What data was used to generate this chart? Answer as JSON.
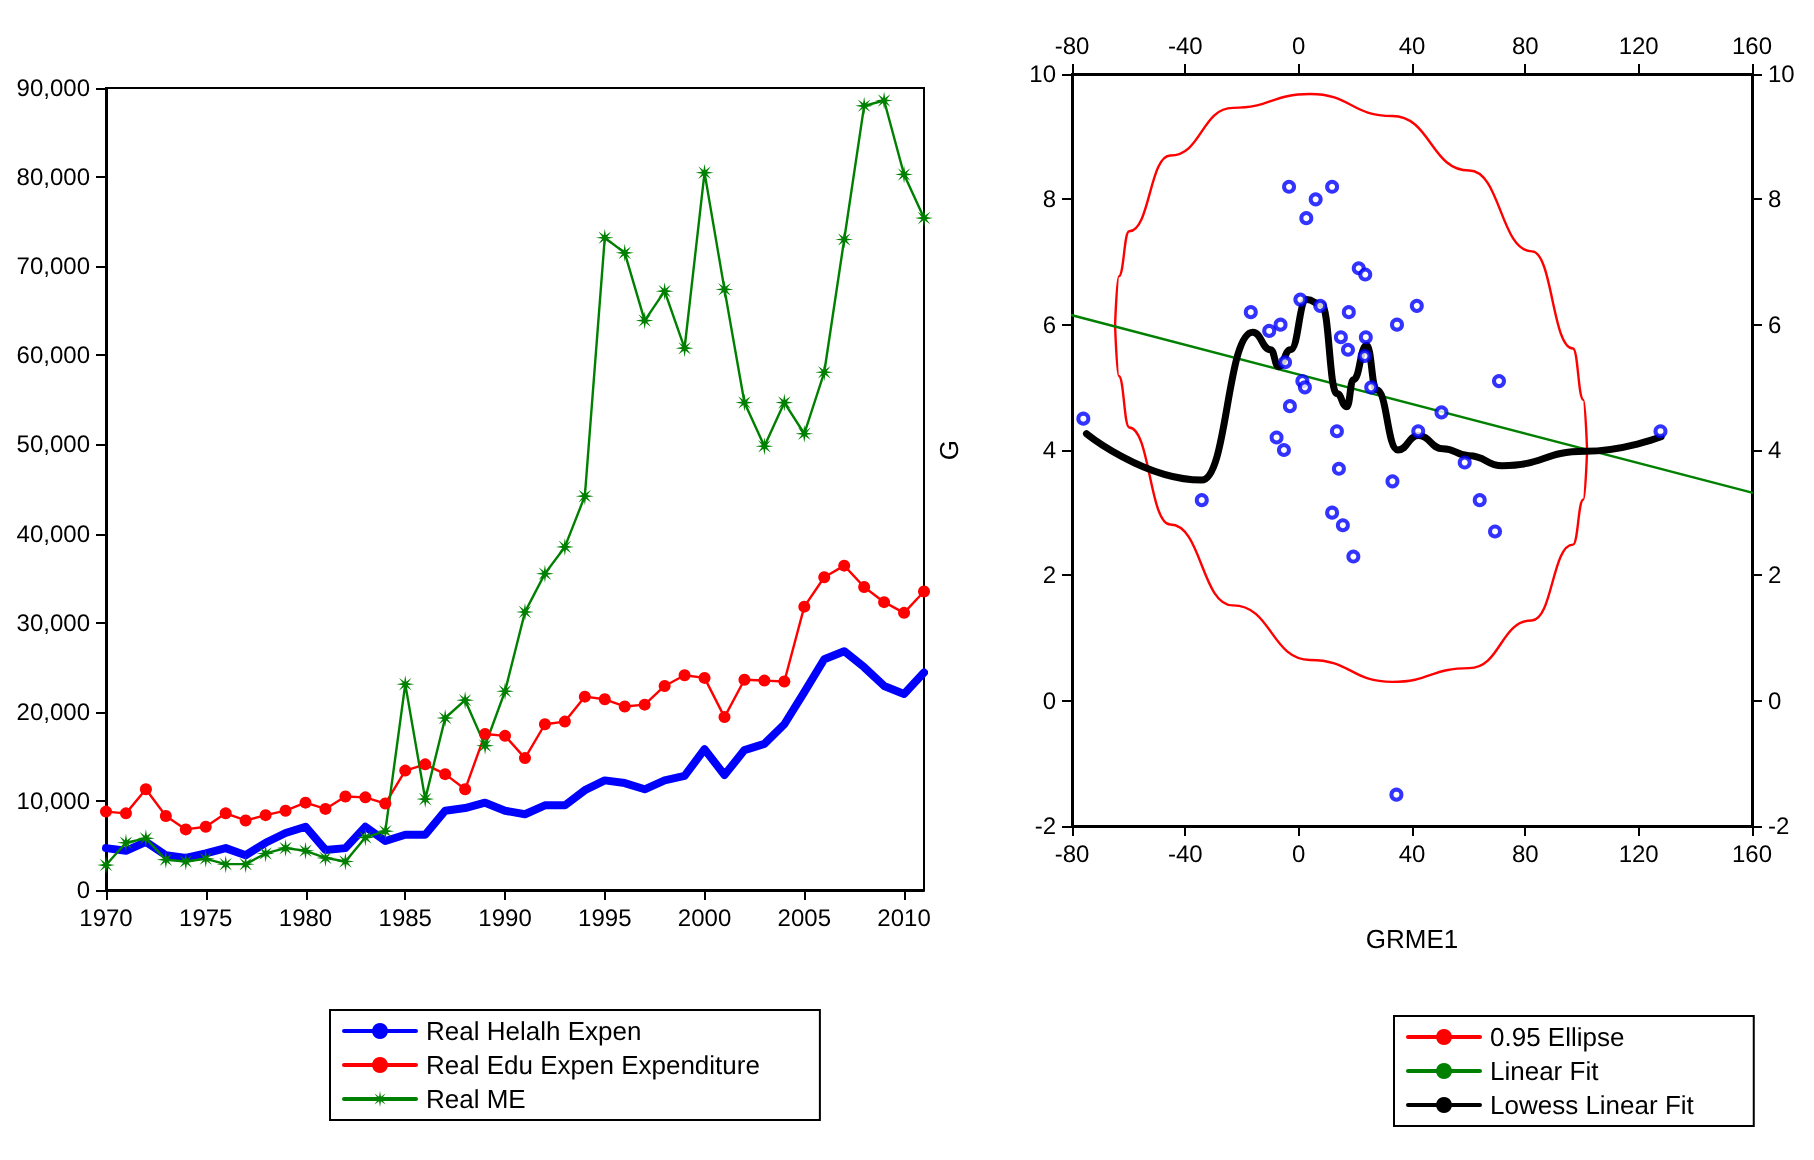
{
  "chart_data": [
    {
      "type": "line",
      "x": [
        1970,
        1971,
        1972,
        1973,
        1974,
        1975,
        1976,
        1977,
        1978,
        1979,
        1980,
        1981,
        1982,
        1983,
        1984,
        1985,
        1986,
        1987,
        1988,
        1989,
        1990,
        1991,
        1992,
        1993,
        1994,
        1995,
        1996,
        1997,
        1998,
        1999,
        2000,
        2001,
        2002,
        2003,
        2004,
        2005,
        2006,
        2007,
        2008,
        2009,
        2010,
        2011
      ],
      "xlim": [
        1970,
        2011
      ],
      "xticks": [
        1970,
        1975,
        1980,
        1985,
        1990,
        1995,
        2000,
        2005,
        2010
      ],
      "ylim": [
        0,
        90000
      ],
      "yticks": [
        0,
        {
          "value": 10000,
          "label": "10,000"
        },
        {
          "value": 20000,
          "label": "20,000"
        },
        {
          "value": 30000,
          "label": "30,000"
        },
        {
          "value": 40000,
          "label": "40,000"
        },
        {
          "value": 50000,
          "label": "50,000"
        },
        {
          "value": 60000,
          "label": "60,000"
        },
        {
          "value": 70000,
          "label": "70,000"
        },
        {
          "value": 80000,
          "label": "80,000"
        },
        {
          "value": 90000,
          "label": "90,000"
        }
      ],
      "grid": false,
      "legend": "bottom",
      "series": [
        {
          "name": "Real Helalh Expen",
          "color": "#0000ff",
          "marker": "none",
          "values": [
            4700,
            4400,
            5400,
            3900,
            3600,
            4100,
            4700,
            3900,
            5300,
            6400,
            7100,
            4500,
            4700,
            7100,
            5500,
            6200,
            6200,
            8900,
            9200,
            9800,
            8900,
            8500,
            9500,
            9500,
            11200,
            12300,
            12000,
            11300,
            12300,
            12800,
            15800,
            12900,
            15700,
            16400,
            18600,
            22200,
            25900,
            26800,
            25000,
            22900,
            22000,
            24400
          ]
        },
        {
          "name": "Real Edu Expen Expenditure",
          "color": "#ff0000",
          "marker": "circle",
          "values": [
            8800,
            8600,
            11300,
            8300,
            6800,
            7100,
            8600,
            7800,
            8400,
            8900,
            9800,
            9100,
            10500,
            10400,
            9700,
            13400,
            14100,
            13000,
            11300,
            17500,
            17300,
            14800,
            18600,
            18900,
            21700,
            21400,
            20600,
            20800,
            22900,
            24100,
            23800,
            19400,
            23600,
            23500,
            23400,
            31800,
            35100,
            36400,
            34000,
            32300,
            31100,
            33500
          ]
        },
        {
          "name": "Real ME",
          "color": "#008000",
          "marker": "star",
          "values": [
            2800,
            5300,
            5800,
            3400,
            3200,
            3500,
            2900,
            2900,
            4100,
            4700,
            4400,
            3600,
            3200,
            5900,
            6600,
            23100,
            10200,
            19300,
            21300,
            16200,
            22300,
            31200,
            35500,
            38500,
            44200,
            73200,
            71500,
            63900,
            67200,
            60800,
            80500,
            67400,
            54700,
            49800,
            54700,
            51200,
            58100,
            73000,
            88000,
            88600,
            80300,
            75400
          ]
        }
      ]
    },
    {
      "type": "scatter",
      "xlabel": "GRME1",
      "ylabel": "G",
      "xlim": [
        -80,
        160
      ],
      "xticks": [
        -80,
        -40,
        0,
        40,
        80,
        120,
        160
      ],
      "x2lim": [
        -80,
        160
      ],
      "x2ticks": [
        -80,
        -40,
        0,
        40,
        80,
        120,
        160
      ],
      "ylim": [
        -2,
        10
      ],
      "yticks": [
        -2,
        0,
        2,
        4,
        6,
        8,
        10
      ],
      "y2lim": [
        -2,
        10
      ],
      "y2ticks": [
        -2,
        0,
        2,
        4,
        6,
        8,
        10
      ],
      "grid": false,
      "legend": "bottom right",
      "series": [
        {
          "color": "#0000ff",
          "marker": "circle",
          "x": [
            -76.0,
            -34.2,
            -16.9,
            -10.4,
            -6.4,
            -4.8,
            -3.4,
            -3.1,
            -7.8,
            -5.2,
            0.6,
            1.3,
            2.2,
            2.7,
            6.0,
            7.6,
            11.8,
            11.8,
            13.5,
            14.2,
            14.9,
            15.6,
            17.4,
            17.7,
            19.3,
            21.2,
            23.5,
            23.7,
            23.3,
            25.6,
            33.1,
            34.5,
            34.7,
            41.7,
            42.2,
            50.4,
            58.6,
            63.9,
            69.3,
            70.7,
            127.7
          ],
          "values": [
            4.5,
            3.2,
            6.2,
            5.9,
            6.0,
            5.4,
            8.2,
            4.7,
            4.2,
            4.0,
            6.4,
            5.1,
            5.0,
            7.7,
            8.0,
            6.3,
            8.2,
            3.0,
            4.3,
            3.7,
            5.8,
            2.8,
            5.6,
            6.2,
            2.3,
            6.9,
            6.8,
            5.8,
            5.5,
            5.0,
            3.5,
            -1.5,
            6.0,
            6.3,
            4.3,
            4.6,
            3.8,
            3.2,
            2.7,
            5.1,
            4.3
          ]
        },
        {
          "type": "line",
          "name": "0.95 Ellipse",
          "color": "#ff0000",
          "marker": "none",
          "x": [
            -64.8,
            -63.5,
            -59.8,
            -45.3,
            -23.2,
            4.0,
            33.0,
            60.2,
            82.3,
            96.8,
            100.5,
            101.8
          ],
          "values": [
            5.99,
            6.77,
            7.49,
            8.7,
            9.46,
            9.68,
            9.33,
            8.46,
            7.17,
            5.62,
            4.8,
            3.99
          ]
        },
        {
          "type": "line",
          "color": "#ff0000",
          "marker": "none",
          "x": [
            -64.8,
            -63.5,
            -59.8,
            -45.3,
            -23.2,
            4.0,
            33.0,
            60.2,
            82.3,
            96.8,
            100.5,
            101.8
          ],
          "values": [
            5.99,
            5.18,
            4.36,
            2.81,
            1.52,
            0.65,
            0.3,
            0.52,
            1.28,
            2.49,
            3.21,
            3.99
          ]
        },
        {
          "type": "line",
          "name": "Linear Fit",
          "color": "#008000",
          "marker": "none",
          "x": [
            -80,
            160
          ],
          "values": [
            6.15,
            3.32
          ]
        },
        {
          "type": "line",
          "name": "Lowess Linear Fit",
          "color": "#000000",
          "marker": "none",
          "x": [
            -74.9,
            -34.2,
            -16.2,
            -9.9,
            -7.1,
            -2.9,
            2.9,
            8.1,
            13.5,
            17.0,
            19.3,
            24.0,
            27.5,
            35.0,
            42.2,
            50.9,
            60.2,
            71.9,
            101.1,
            127.9
          ],
          "values": [
            4.26,
            3.52,
            5.88,
            5.6,
            5.33,
            5.6,
            6.4,
            6.32,
            4.9,
            4.69,
            5.12,
            5.67,
            4.96,
            4.0,
            4.23,
            4.02,
            3.91,
            3.75,
            3.98,
            4.21
          ]
        }
      ]
    }
  ]
}
